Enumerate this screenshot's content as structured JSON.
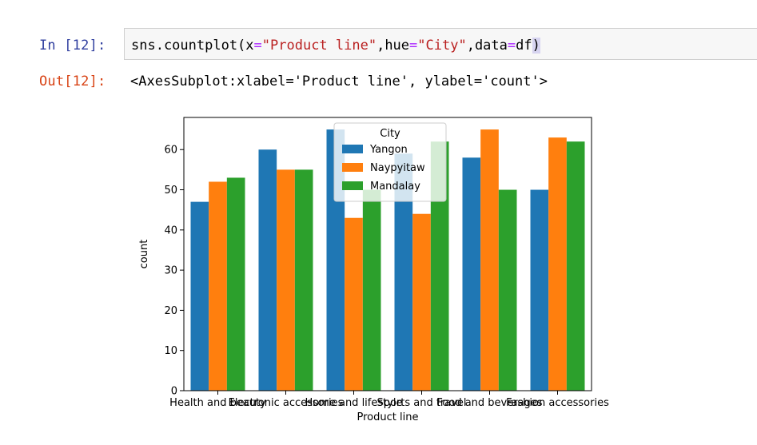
{
  "cell": {
    "in_prompt": "In [12]:",
    "out_prompt": "Out[12]:",
    "code": {
      "func": "sns.countplot(x",
      "eq1": "=",
      "arg_x": "\"Product line\"",
      "sep1": ",hue",
      "eq2": "=",
      "arg_hue": "\"City\"",
      "sep2": ",data",
      "eq3": "=",
      "arg_data": "df",
      "close": ")"
    },
    "output": "<AxesSubplot:xlabel='Product line', ylabel='count'>"
  },
  "chart_data": {
    "type": "bar",
    "xlabel": "Product line",
    "ylabel": "count",
    "ylim": [
      0,
      68
    ],
    "yticks": [
      0,
      10,
      20,
      30,
      40,
      50,
      60
    ],
    "categories": [
      "Health and beauty",
      "Electronic accessories",
      "Home and lifestyle",
      "Sports and travel",
      "Food and beverages",
      "Fashion accessories"
    ],
    "series": [
      {
        "name": "Yangon",
        "color": "#1f77b4",
        "values": [
          47,
          60,
          65,
          59,
          58,
          50
        ]
      },
      {
        "name": "Naypyitaw",
        "color": "#ff7f0e",
        "values": [
          52,
          55,
          43,
          44,
          65,
          63
        ]
      },
      {
        "name": "Mandalay",
        "color": "#2ca02c",
        "values": [
          53,
          55,
          50,
          62,
          50,
          62
        ]
      }
    ],
    "legend": {
      "title": "City",
      "placement": "upper center"
    },
    "grid": false
  }
}
